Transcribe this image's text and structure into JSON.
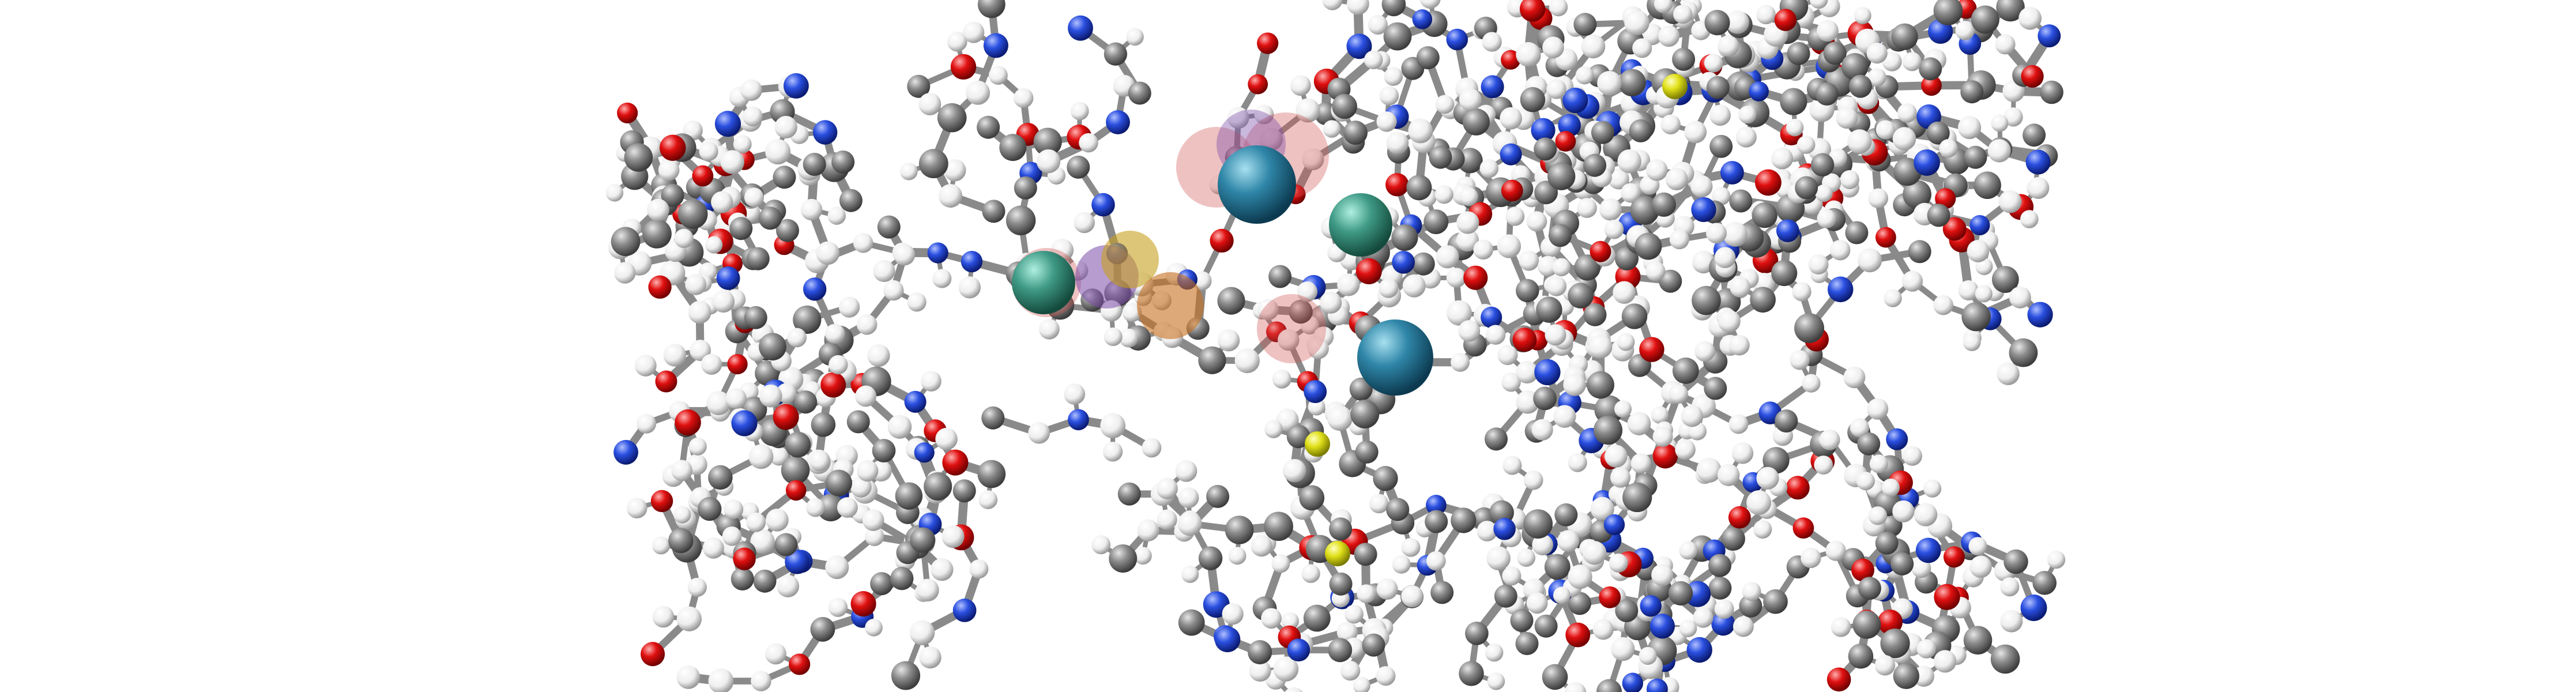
{
  "scene": {
    "kind": "molecular-structure-render",
    "style": "ball-and-stick",
    "background": "#ffffff",
    "element_colors": {
      "carbon": "#8c8c8c",
      "hydrogen": "#f2f2f2",
      "oxygen": "#e01010",
      "nitrogen": "#2a4fe0",
      "sulfur": "#e0e01a"
    },
    "highlight_colors": {
      "metal_ion_blue": "#2f86a8",
      "ion_teal": "#3f9a86",
      "ion_purple": "#7a4aa8",
      "ion_gold": "#c8a020",
      "ion_orange": "#c87020",
      "transparent_red": "#d05050"
    }
  }
}
